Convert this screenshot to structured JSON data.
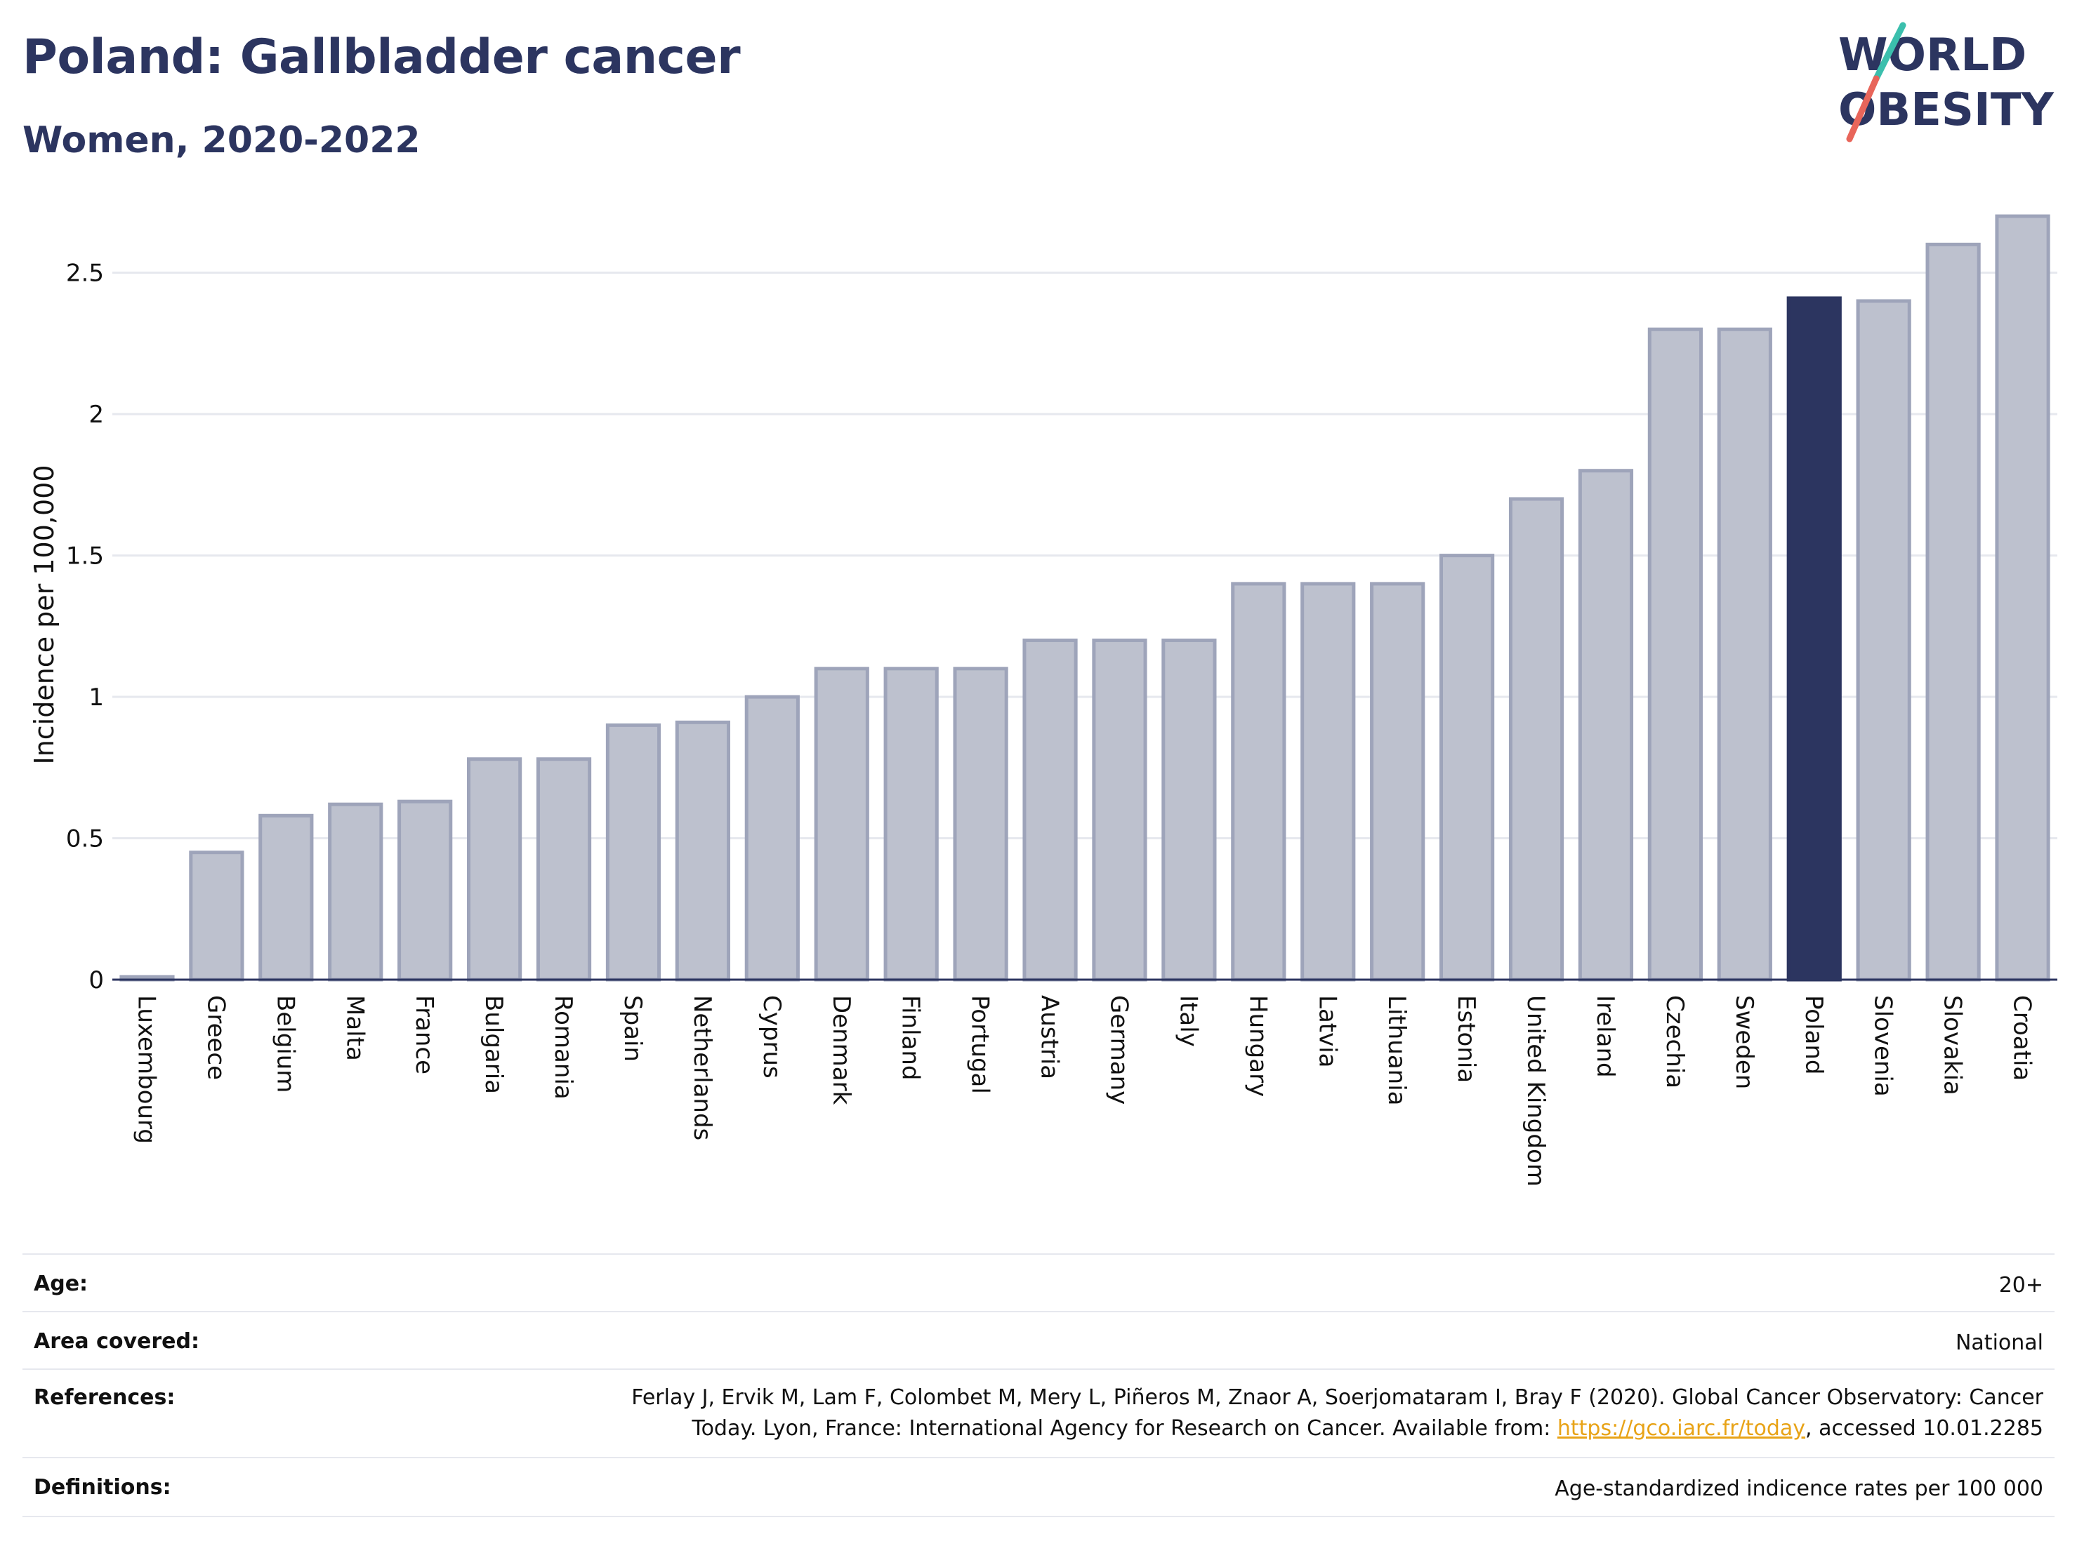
{
  "header": {
    "title": "Poland: Gallbladder cancer",
    "subtitle": "Women, 2020-2022"
  },
  "logo": {
    "line1": "WORLD",
    "line2": "OBESITY",
    "colors": {
      "text": "#2c3560",
      "slash_top": "#3bbfad",
      "slash_bottom": "#e8655a"
    }
  },
  "colors": {
    "bar_fill": "#bdc1ce",
    "bar_stroke": "#9ea4ba",
    "highlight": "#2c3560",
    "grid": "#e6e8ee",
    "axis": "#2c3560"
  },
  "chart_data": {
    "type": "bar",
    "title": "Poland: Gallbladder cancer",
    "subtitle": "Women, 2020-2022",
    "xlabel": "",
    "ylabel": "Incidence per 100,000",
    "ylim": [
      0,
      2.72
    ],
    "yticks": [
      0,
      0.5,
      1,
      1.5,
      2,
      2.5
    ],
    "ytick_labels": [
      "0",
      "0.5",
      "1",
      "1.5",
      "2",
      "2.5"
    ],
    "grid": true,
    "highlight": "Poland",
    "categories": [
      "Luxembourg",
      "Greece",
      "Belgium",
      "Malta",
      "France",
      "Bulgaria",
      "Romania",
      "Spain",
      "Netherlands",
      "Cyprus",
      "Denmark",
      "Finland",
      "Portugal",
      "Austria",
      "Germany",
      "Italy",
      "Hungary",
      "Latvia",
      "Lithuania",
      "Estonia",
      "United Kingdom",
      "Ireland",
      "Czechia",
      "Sweden",
      "Poland",
      "Slovenia",
      "Slovakia",
      "Croatia"
    ],
    "values": [
      0.01,
      0.45,
      0.58,
      0.62,
      0.63,
      0.78,
      0.78,
      0.9,
      0.91,
      1.0,
      1.1,
      1.1,
      1.1,
      1.2,
      1.2,
      1.2,
      1.4,
      1.4,
      1.4,
      1.5,
      1.7,
      1.8,
      2.3,
      2.3,
      2.41,
      2.4,
      2.6,
      2.7
    ]
  },
  "footer": {
    "rows": [
      {
        "key": "Age:",
        "value": "20+"
      },
      {
        "key": "Area covered:",
        "value": "National"
      },
      {
        "key": "References:",
        "value_line1": "Ferlay J, Ervik M, Lam F, Colombet M, Mery L, Piñeros M, Znaor A, Soerjomataram I, Bray F (2020). Global Cancer Observatory: Cancer",
        "value_line2_pre": "Today. Lyon, France: International Agency for Research on Cancer. Available from: ",
        "link": "https://gco.iarc.fr/today",
        "value_line2_post": ", accessed 10.01.2285"
      },
      {
        "key": "Definitions:",
        "value": "Age-standardized indicence rates per 100 000"
      }
    ]
  }
}
